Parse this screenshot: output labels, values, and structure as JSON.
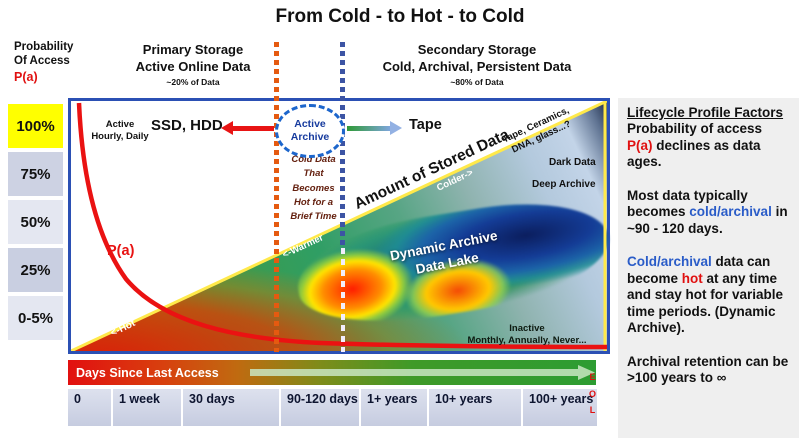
{
  "title": "From Cold - to Hot - to Cold",
  "header": {
    "probability_label": "Probability\nOf Access",
    "probability_pa": "P(a)",
    "primary": {
      "label": "Primary Storage\nActive Online Data",
      "note": "~20% of Data"
    },
    "secondary": {
      "label": "Secondary Storage\nCold, Archival, Persistent Data",
      "note": "~80% of Data"
    }
  },
  "yaxis": {
    "ticks": [
      "100%",
      "75%",
      "50%",
      "25%",
      "0-5%"
    ]
  },
  "chart": {
    "active_label": "Active\nHourly, Daily",
    "ssd_hdd": "SSD, HDD",
    "active_archive": "Active\nArchive",
    "tape": "Tape",
    "cold_data_note": "Cold Data\nThat\nBecomes\nHot for a\nBrief Time",
    "amount_label": "Amount of Stored Data",
    "colder": "Colder->",
    "warmer": "<-Warmer",
    "hot": "<-Hot",
    "pa_curve_label": "P(a)",
    "tape_ceramics": "Tape, Ceramics,\nDNA, glass...?",
    "dark_data": "Dark Data",
    "deep_archive": "Deep Archive",
    "dynamic_archive": "Dynamic Archive\nData Lake",
    "inactive": "Inactive\nMonthly, Annually, Never..."
  },
  "timeline": {
    "bar_label": "Days Since Last Access",
    "ticks": [
      "0",
      "1 week",
      "30 days",
      "90-120 days",
      "1+ years",
      "10+ years",
      "100+ years"
    ],
    "eol": "E\nO\nL"
  },
  "panel": {
    "title": "Lifecycle Profile Factors",
    "paragraphs": {
      "p1": [
        {
          "t": "Probability of access ",
          "c": "k"
        },
        {
          "t": "P(a)",
          "c": "r"
        },
        {
          "t": " declines as data ages.",
          "c": "k"
        }
      ],
      "p2": [
        {
          "t": "Most data typically becomes ",
          "c": "k"
        },
        {
          "t": "cold/archival",
          "c": "b"
        },
        {
          "t": " in ~90 - 120 days.",
          "c": "k"
        }
      ],
      "p3": [
        {
          "t": "Cold/archival",
          "c": "b"
        },
        {
          "t": " data can become ",
          "c": "k"
        },
        {
          "t": "hot",
          "c": "r"
        },
        {
          "t": " at any time and stay hot for variable time periods. (Dynamic Archive).",
          "c": "k"
        }
      ],
      "p4": [
        {
          "t": "Archival retention can be >100 years to ∞",
          "c": "k"
        }
      ]
    }
  },
  "icons": {
    "red_arrow": "left-arrow",
    "green_arrow": "right-arrow",
    "active_archive_cloud": "dashed-cloud",
    "eol_marker": "end-of-life"
  },
  "colors": {
    "accent_red": "#e81414",
    "accent_blue_text": "#2a5cc8",
    "orange_divider": "#e55a10",
    "blue_divider": "#3c54a4",
    "diagonal_yellow": "#ffe94a",
    "chart_border_blue": "#2b50b4",
    "tick_highlight_yellow": "#ffff00",
    "panel_bg": "#efefef"
  }
}
